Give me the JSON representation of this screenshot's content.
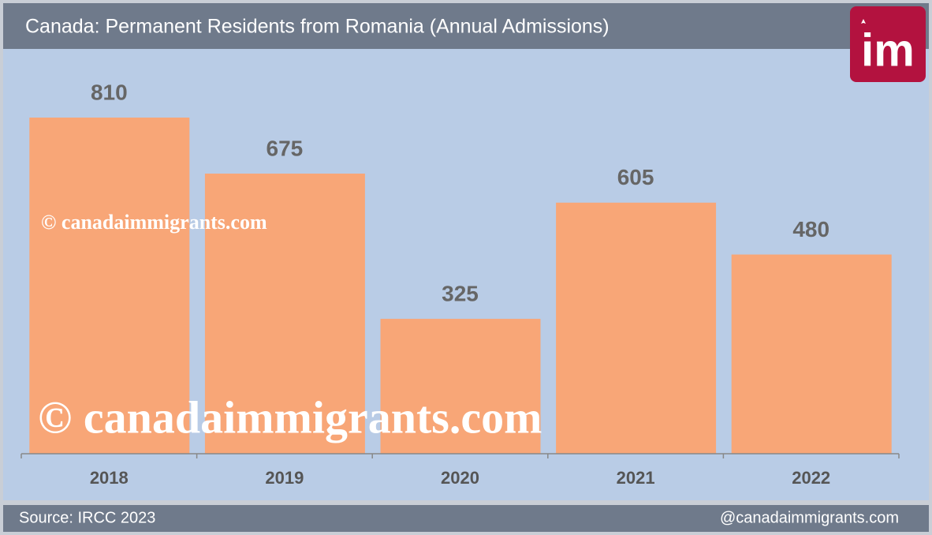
{
  "chart_data": {
    "type": "bar",
    "title": "Canada: Permanent Residents from Romania (Annual Admissions)",
    "categories": [
      "2018",
      "2019",
      "2020",
      "2021",
      "2022"
    ],
    "values": [
      810,
      675,
      325,
      605,
      480
    ],
    "color": "#f8a677"
  },
  "watermarks": [
    "© canadaimmigrants.com",
    "© canadaimmigrants.com"
  ],
  "source": "Source: IRCC 2023",
  "handle": "@canadaimmigrants.com",
  "logo": "im"
}
